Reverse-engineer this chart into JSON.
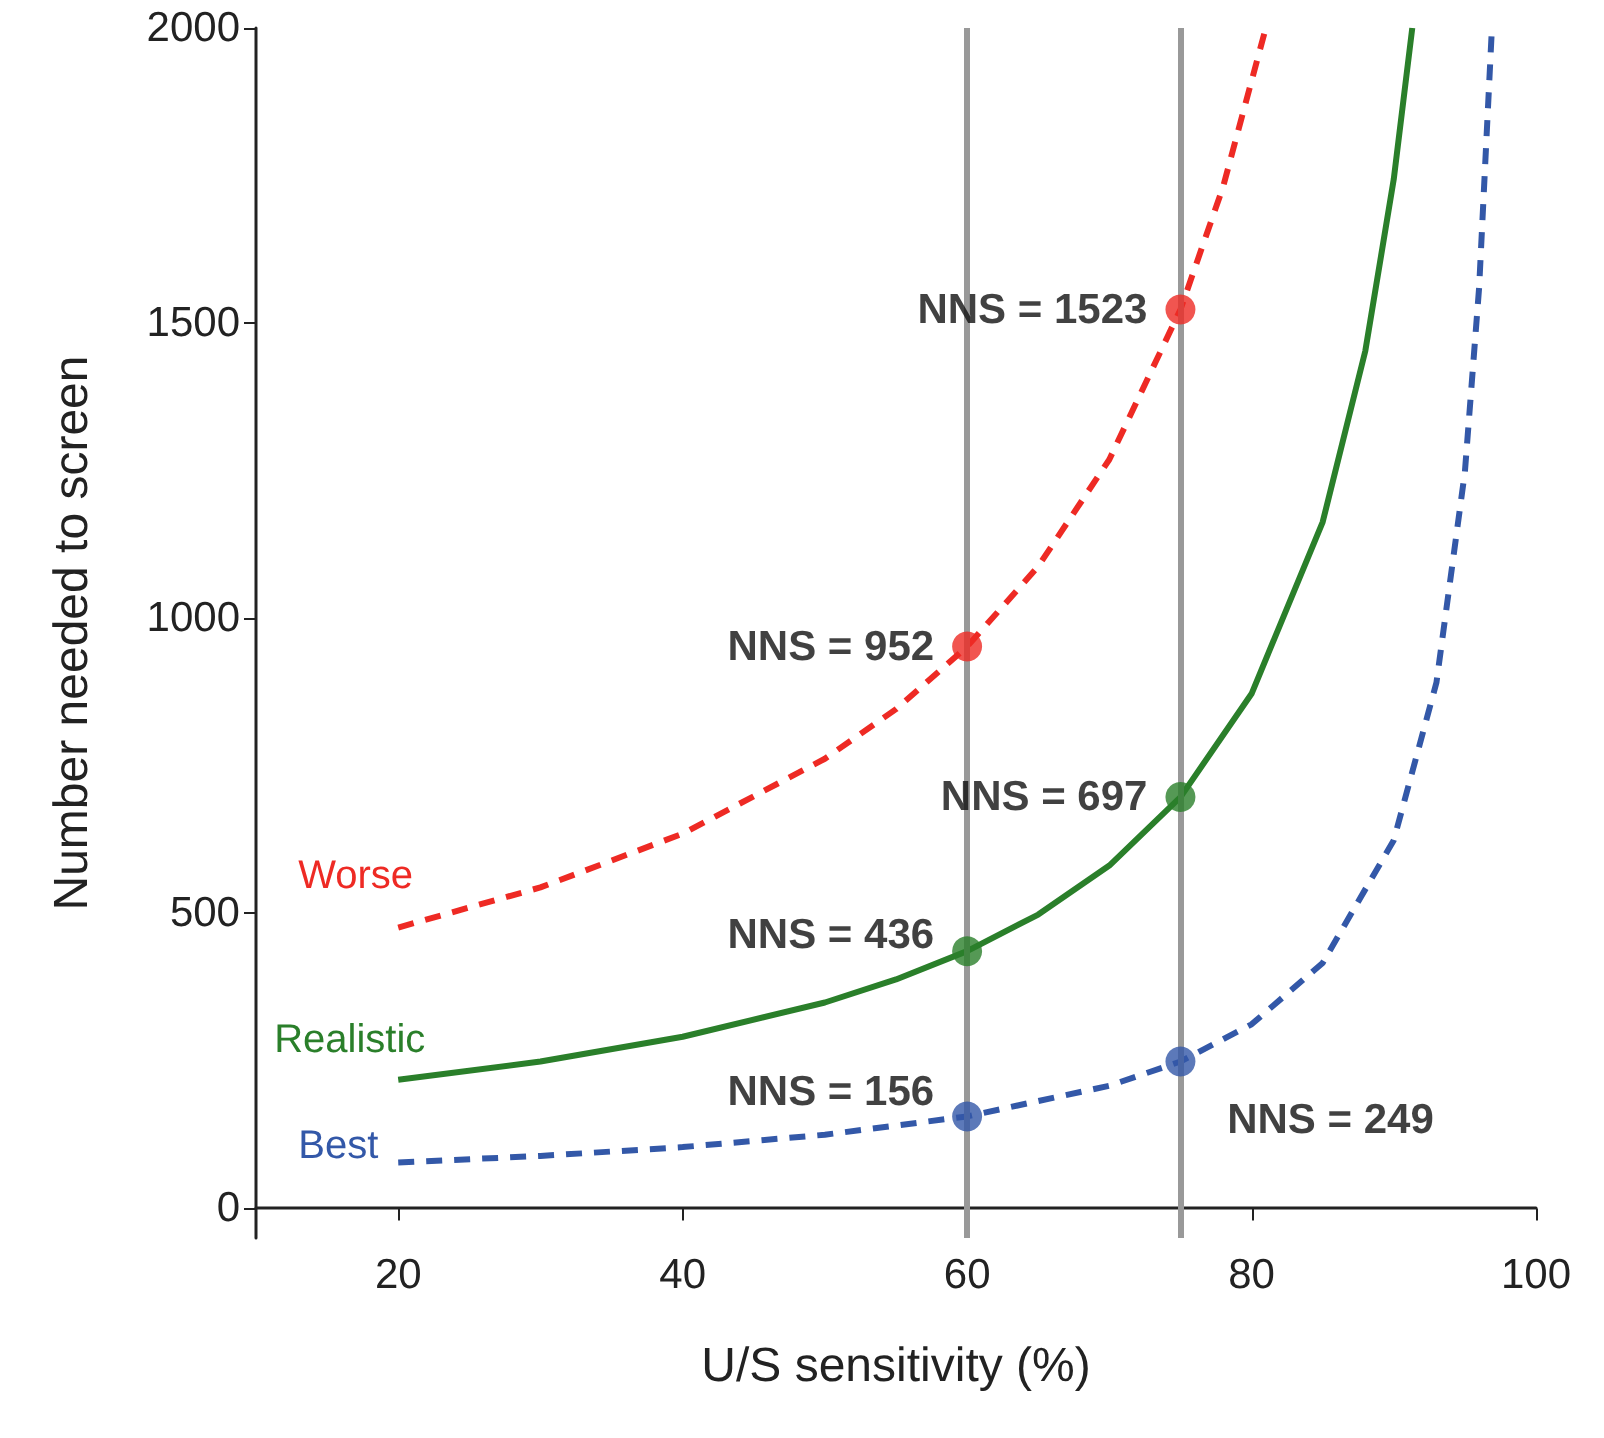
{
  "chart_data": {
    "type": "line",
    "xlabel": "U/S sensitivity (%)",
    "ylabel": "Number needed to screen",
    "xlim": [
      10,
      100
    ],
    "xticks": [
      20,
      40,
      60,
      80,
      100
    ],
    "ylim": [
      -50,
      2000
    ],
    "yticks": [
      0,
      500,
      1000,
      1500,
      2000
    ],
    "grid": false,
    "legend": false,
    "marker": "none",
    "series": [
      {
        "name": "Worse",
        "color": "#ee2a24",
        "line_style": "dashed",
        "x": [
          20,
          30,
          40,
          50,
          55,
          60,
          65,
          70,
          75,
          78,
          81
        ],
        "values": [
          476,
          544,
          635,
          762,
          846,
          952,
          1088,
          1269,
          1523,
          1731,
          2000
        ]
      },
      {
        "name": "Realistic",
        "color": "#2a7f2a",
        "line_style": "solid",
        "x": [
          20,
          30,
          40,
          50,
          55,
          60,
          65,
          70,
          75,
          80,
          85,
          88,
          90,
          91.3
        ],
        "values": [
          218,
          249,
          291,
          349,
          388,
          436,
          498,
          581,
          697,
          872,
          1163,
          1453,
          1744,
          2000
        ]
      },
      {
        "name": "Best",
        "color": "#3358a8",
        "line_style": "dashed",
        "x": [
          20,
          30,
          40,
          50,
          60,
          70,
          75,
          80,
          85,
          90,
          93,
          95,
          96,
          96.9
        ],
        "values": [
          78,
          89,
          104,
          125,
          156,
          208,
          249,
          312,
          416,
          624,
          891,
          1248,
          1560,
          2000
        ]
      },
      {
        "type": "scatter",
        "color": "#ee2a24",
        "marker": "circle",
        "x": [
          60,
          75
        ],
        "values": [
          952,
          1523
        ],
        "value_labels": [
          "NNS = 952",
          "NNS = 1523"
        ]
      },
      {
        "type": "scatter",
        "color": "#2a7f2a",
        "marker": "circle",
        "x": [
          60,
          75
        ],
        "values": [
          436,
          697
        ],
        "value_labels": [
          "NNS = 436",
          "NNS = 697"
        ]
      },
      {
        "type": "scatter",
        "color": "#3358a8",
        "marker": "circle",
        "x": [
          60,
          75
        ],
        "values": [
          156,
          249
        ],
        "value_labels": [
          "NNS = 156",
          "NNS = 249"
        ]
      }
    ],
    "ref_lines": [
      {
        "axis": "x",
        "value": 60,
        "color": "#999999"
      },
      {
        "axis": "x",
        "value": 75,
        "color": "#999999"
      }
    ]
  }
}
